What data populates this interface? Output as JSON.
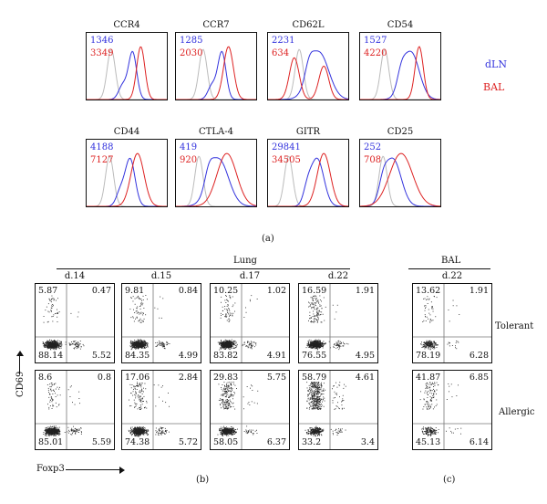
{
  "colors": {
    "dLN": "#3333dd",
    "BAL": "#dd2222",
    "isotype": "#bbbbbb"
  },
  "histograms": {
    "legend": {
      "dLN": "dLN",
      "BAL": "BAL"
    },
    "panel_label": "(a)",
    "panels": [
      {
        "marker": "CCR4",
        "dLN_mfi": "1346",
        "BAL_mfi": "3349"
      },
      {
        "marker": "CCR7",
        "dLN_mfi": "1285",
        "BAL_mfi": "2030"
      },
      {
        "marker": "CD62L",
        "dLN_mfi": "2231",
        "BAL_mfi": "634"
      },
      {
        "marker": "CD54",
        "dLN_mfi": "1527",
        "BAL_mfi": "4220"
      },
      {
        "marker": "CD44",
        "dLN_mfi": "4188",
        "BAL_mfi": "7127"
      },
      {
        "marker": "CTLA-4",
        "dLN_mfi": "419",
        "BAL_mfi": "920"
      },
      {
        "marker": "GITR",
        "dLN_mfi": "29841",
        "BAL_mfi": "34505"
      },
      {
        "marker": "CD25",
        "dLN_mfi": "252",
        "BAL_mfi": "708"
      }
    ]
  },
  "dotplots": {
    "lung_header": "Lung",
    "bal_header": "BAL",
    "lung_days": [
      "d.14",
      "d.15",
      "d.17",
      "d.22"
    ],
    "bal_day": "d.22",
    "row_labels": [
      "Tolerant",
      "Allergic"
    ],
    "y_axis": "CD69",
    "x_axis": "Foxp3",
    "panel_label_b": "(b)",
    "panel_label_c": "(c)",
    "lung": [
      [
        {
          "tl": "5.87",
          "tr": "0.47",
          "bl": "88.14",
          "br": "5.52"
        },
        {
          "tl": "9.81",
          "tr": "0.84",
          "bl": "84.35",
          "br": "4.99"
        },
        {
          "tl": "10.25",
          "tr": "1.02",
          "bl": "83.82",
          "br": "4.91"
        },
        {
          "tl": "16.59",
          "tr": "1.91",
          "bl": "76.55",
          "br": "4.95"
        }
      ],
      [
        {
          "tl": "8.6",
          "tr": "0.8",
          "bl": "85.01",
          "br": "5.59"
        },
        {
          "tl": "17.06",
          "tr": "2.84",
          "bl": "74.38",
          "br": "5.72"
        },
        {
          "tl": "29.83",
          "tr": "5.75",
          "bl": "58.05",
          "br": "6.37"
        },
        {
          "tl": "58.79",
          "tr": "4.61",
          "bl": "33.2",
          "br": "3.4"
        }
      ]
    ],
    "bal": [
      {
        "tl": "13.62",
        "tr": "1.91",
        "bl": "78.19",
        "br": "6.28"
      },
      {
        "tl": "41.87",
        "tr": "6.85",
        "bl": "45.13",
        "br": "6.14"
      }
    ]
  }
}
